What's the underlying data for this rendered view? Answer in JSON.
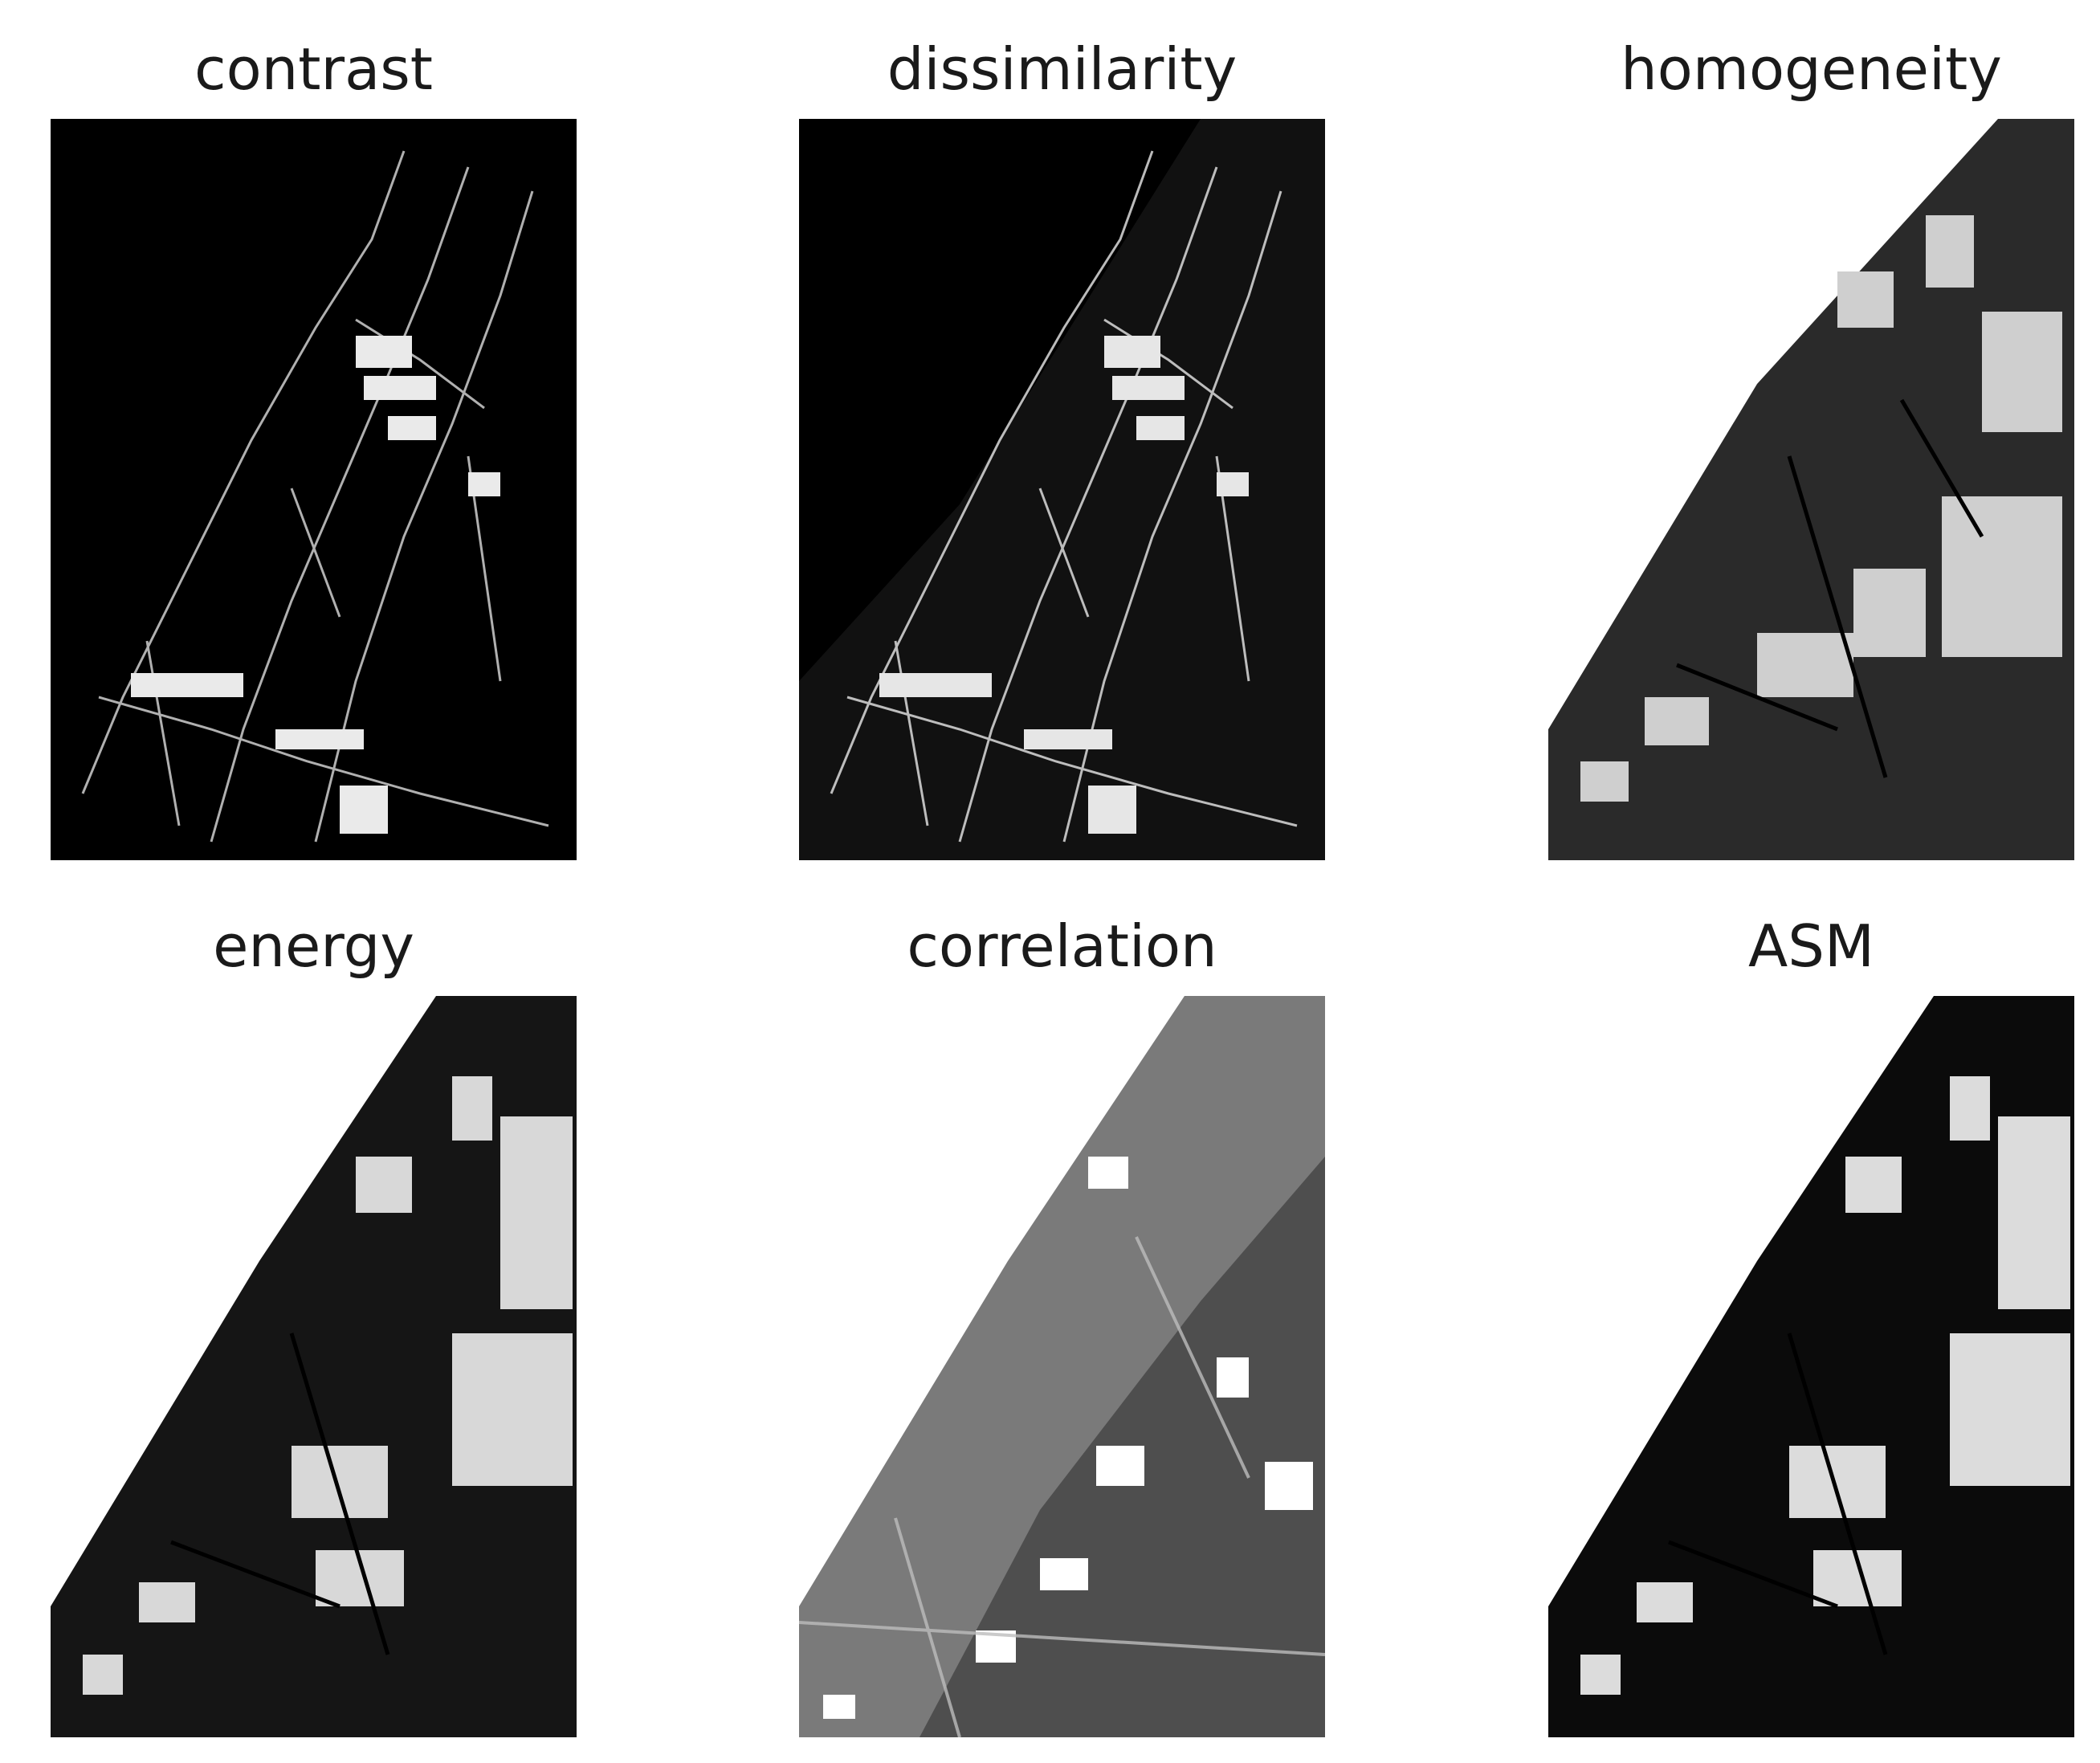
{
  "panels": [
    {
      "title": "contrast"
    },
    {
      "title": "dissimilarity"
    },
    {
      "title": "homogeneity"
    },
    {
      "title": "energy"
    },
    {
      "title": "correlation"
    },
    {
      "title": "ASM"
    }
  ]
}
